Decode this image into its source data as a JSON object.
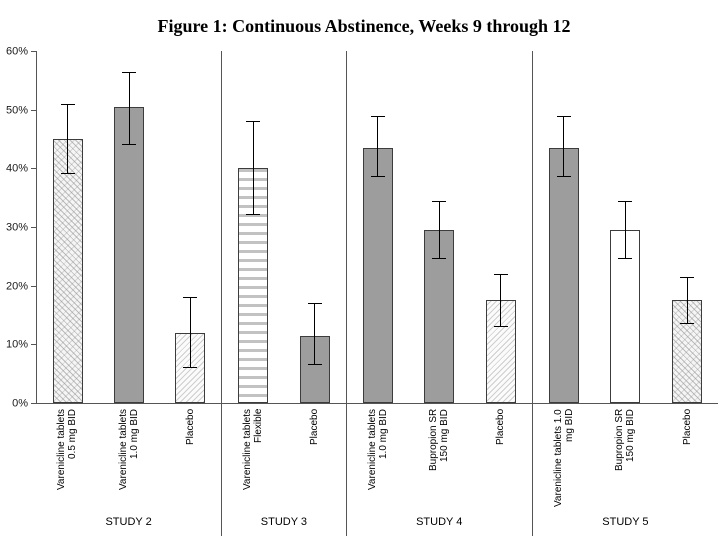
{
  "title": "Figure 1: Continuous Abstinence, Weeks 9 through 12",
  "chart_data": {
    "type": "bar",
    "title": "Figure 1: Continuous Abstinence, Weeks 9 through 12",
    "xlabel": "",
    "ylabel": "",
    "ylim": [
      0,
      60
    ],
    "ytick_step": 10,
    "ytick_labels": [
      "0%",
      "10%",
      "20%",
      "30%",
      "40%",
      "50%",
      "60%"
    ],
    "grid": false,
    "legend": false,
    "error_bars": true,
    "groups": [
      {
        "name": "STUDY 2",
        "bars": [
          {
            "label": "Varenicline tablets\n0.5 mg BID",
            "value": 45,
            "ci_low": 39,
            "ci_high": 51,
            "fill": "diag"
          },
          {
            "label": "Varenicline tablets\n1.0 mg BID",
            "value": 50.5,
            "ci_low": 44,
            "ci_high": 56.5,
            "fill": "solid"
          },
          {
            "label": "Placebo",
            "value": 12,
            "ci_low": 6,
            "ci_high": 18,
            "fill": "dots"
          }
        ]
      },
      {
        "name": "STUDY 3",
        "bars": [
          {
            "label": "Varenicline tablets\nFlexible",
            "value": 40,
            "ci_low": 32,
            "ci_high": 48,
            "fill": "hstripe"
          },
          {
            "label": "Placebo",
            "value": 11.5,
            "ci_low": 6.5,
            "ci_high": 17,
            "fill": "solid"
          }
        ]
      },
      {
        "name": "STUDY 4",
        "bars": [
          {
            "label": "Varenicline tablets\n1.0 mg BID",
            "value": 43.5,
            "ci_low": 38.5,
            "ci_high": 49,
            "fill": "solid"
          },
          {
            "label": "Bupropion SR\n150 mg BID",
            "value": 29.5,
            "ci_low": 24.5,
            "ci_high": 34.5,
            "fill": "solid"
          },
          {
            "label": "Placebo",
            "value": 17.5,
            "ci_low": 13,
            "ci_high": 22,
            "fill": "dots"
          }
        ]
      },
      {
        "name": "STUDY 5",
        "bars": [
          {
            "label": "Varenicline tablets 1.0\nmg BID",
            "value": 43.5,
            "ci_low": 38.5,
            "ci_high": 49,
            "fill": "solid"
          },
          {
            "label": "Bupropion SR\n150 mg BID",
            "value": 29.5,
            "ci_low": 24.5,
            "ci_high": 34.5,
            "fill": "white"
          },
          {
            "label": "Placebo",
            "value": 17.5,
            "ci_low": 13.5,
            "ci_high": 21.5,
            "fill": "diag"
          }
        ]
      }
    ]
  }
}
